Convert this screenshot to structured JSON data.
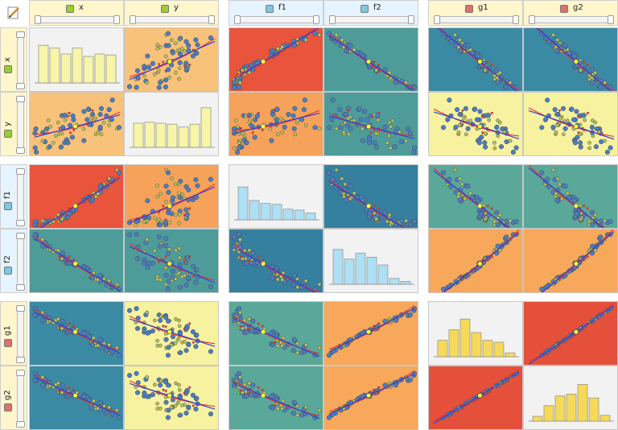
{
  "variables": [
    "x",
    "y",
    "f1",
    "f2",
    "g1",
    "g2"
  ],
  "groups": [
    {
      "vars": [
        "x",
        "y"
      ],
      "header_bg": "#fff6cc",
      "badge_color": "#9acd32"
    },
    {
      "vars": [
        "f1",
        "f2"
      ],
      "header_bg": "#e6f4ff",
      "badge_color": "#7ec8e3"
    },
    {
      "vars": [
        "g1",
        "g2"
      ],
      "header_bg": "#fff6cc",
      "badge_color": "#e07070"
    }
  ],
  "icons": {
    "corner": "edit-pencil-icon",
    "header": "variable-type-icon"
  },
  "chart_data": {
    "type": "scatter",
    "layout": "scatterplot-matrix",
    "variables": [
      "x",
      "y",
      "f1",
      "f2",
      "g1",
      "g2"
    ],
    "diagonal": {
      "type": "bar",
      "x": {
        "bars": [
          0.78,
          0.72,
          0.6,
          0.72,
          0.55,
          0.6,
          0.58
        ],
        "color": "#f7f5a8"
      },
      "y": {
        "bars": [
          0.5,
          0.52,
          0.5,
          0.48,
          0.42,
          0.48,
          0.82
        ],
        "color": "#f7f5a8"
      },
      "f1": {
        "bars": [
          0.68,
          0.4,
          0.34,
          0.32,
          0.22,
          0.2,
          0.14
        ],
        "color": "#aee0f4"
      },
      "f2": {
        "bars": [
          0.72,
          0.52,
          0.64,
          0.56,
          0.4,
          0.12,
          0.06
        ],
        "color": "#aee0f4"
      },
      "g1": {
        "bars": [
          0.34,
          0.56,
          0.78,
          0.5,
          0.34,
          0.3,
          0.08
        ],
        "color": "#f7d95a"
      },
      "g2": {
        "bars": [
          0.1,
          0.32,
          0.52,
          0.56,
          0.76,
          0.48,
          0.12
        ],
        "color": "#f7d95a"
      }
    },
    "cell_backgrounds": {
      "x|y": "#f9c27a",
      "x|f1": "#e8553c",
      "x|f2": "#4e9c9a",
      "x|g1": "#3b8aa3",
      "x|g2": "#3b8aa3",
      "y|x": "#f9c27a",
      "y|f1": "#f7a25a",
      "y|f2": "#4e9c9a",
      "y|g1": "#f7f2a0",
      "y|g2": "#f7f2a0",
      "f1|x": "#e8553c",
      "f1|y": "#f7a25a",
      "f1|f2": "#357f9f",
      "f1|g1": "#5aa89a",
      "f1|g2": "#5aa89a",
      "f2|x": "#4e9c9a",
      "f2|y": "#4e9c9a",
      "f2|f1": "#357f9f",
      "f2|g1": "#f7a85a",
      "f2|g2": "#f7a85a",
      "g1|x": "#3b8aa3",
      "g1|y": "#f7f2a0",
      "g1|f1": "#5aa89a",
      "g1|f2": "#f7a85a",
      "g1|g2": "#e5503a",
      "g2|x": "#3b8aa3",
      "g2|y": "#f7f2a0",
      "g2|f1": "#5aa89a",
      "g2|f2": "#f7a85a",
      "g2|g1": "#e5503a"
    },
    "point_colors": {
      "blue": "#4a7fc1",
      "green": "#b8c45a",
      "red": "#c23b3b"
    },
    "fit_colors": {
      "linear": "#2f3fd8",
      "nonlinear": "#e8302a"
    }
  }
}
